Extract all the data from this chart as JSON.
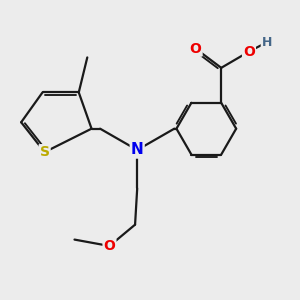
{
  "bg_color": "#ececec",
  "bond_color": "#1a1a1a",
  "atom_colors": {
    "N": "#0000ee",
    "O": "#ee0000",
    "S": "#bbaa00",
    "H": "#446688",
    "C": "#1a1a1a"
  },
  "bond_width": 1.6,
  "figsize": [
    3.0,
    3.0
  ],
  "dpi": 100
}
